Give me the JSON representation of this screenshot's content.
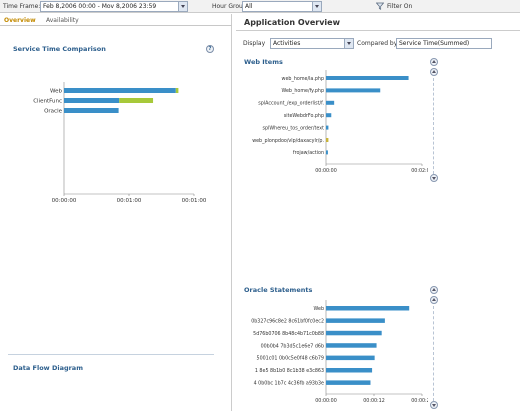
{
  "toolbar": {
    "time_frame_label": "Time Frame:",
    "time_frame_value": "Feb 8,2006 00:00 - Mov 8,2006 23:59",
    "hour_group_label": "Hour Group",
    "hour_group_value": "All",
    "filter_label": "Filter On"
  },
  "left": {
    "tabs": [
      {
        "label": "Overview",
        "active": true
      },
      {
        "label": "Availability",
        "active": false
      }
    ],
    "section_title": "Service Time Comparison",
    "bottom_title": "Data Flow Diagram"
  },
  "right": {
    "title": "Application Overview",
    "display_label": "Display",
    "display_value": "Activities",
    "compared_by_label": "Compared by",
    "compared_by_value": "Service Time(Summed)",
    "web_title": "Web Items",
    "oracle_title": "Oracle Statements"
  },
  "chart_data": [
    {
      "id": "service-time",
      "type": "bar",
      "orientation": "horizontal",
      "stacked": true,
      "categories": [
        "Web",
        "ClientFunc",
        "Oracle"
      ],
      "series": [
        {
          "color": "#3a8fc8",
          "values": [
            1.72,
            0.85,
            0.84
          ]
        },
        {
          "color": "#a7c93a",
          "values": [
            0.04,
            0.52,
            0
          ]
        }
      ],
      "xlim": [
        0,
        2
      ],
      "xticks": [
        "00:00:00",
        "00:01:00",
        "00:01:00"
      ]
    },
    {
      "id": "web-items",
      "type": "bar",
      "orientation": "horizontal",
      "categories": [
        "web_home/la.php",
        "Web_home/fy.php",
        "splAccount_/exp_orderlist/f.",
        "siteWebdrFo.php",
        "splWhereu_tos_order/text",
        "web_plonpdoo/vlp/daxacylr/p.",
        "frojaw/action"
      ],
      "values": [
        1.72,
        1.13,
        0.17,
        0.11,
        0.05,
        0.05,
        0.04
      ],
      "colors": [
        "#3a8fc8",
        "#3a8fc8",
        "#3a8fc8",
        "#3a8fc8",
        "#3a8fc8",
        "#c8b33a",
        "#3a8fc8"
      ],
      "xlim": [
        0,
        2
      ],
      "xticks": [
        "00:00:00",
        "00:02:00"
      ]
    },
    {
      "id": "oracle-statements",
      "type": "bar",
      "orientation": "horizontal",
      "categories": [
        "Web",
        "0b327c96c8e2 8c61bf0fc0ec2",
        "5d76b0706 8b48c4b71c0b88",
        "00b0b4 7b3d5c1e6e7 d6b",
        "5001c01 0b0c5e0f48 c6b79",
        "1 8e5 8b1b0 8c1b38 e3c863",
        "4 0b0bc 1b7c 4c36fb a93b3e"
      ],
      "values": [
        2.6,
        1.84,
        1.74,
        1.58,
        1.52,
        1.44,
        1.39
      ],
      "colors": [
        "#3a8fc8",
        "#3a8fc8",
        "#3a8fc8",
        "#3a8fc8",
        "#3a8fc8",
        "#3a8fc8",
        "#3a8fc8"
      ],
      "xlim": [
        0,
        3
      ],
      "xticks": [
        "00:00:00",
        "00:00:12",
        "00:00:24"
      ]
    }
  ]
}
